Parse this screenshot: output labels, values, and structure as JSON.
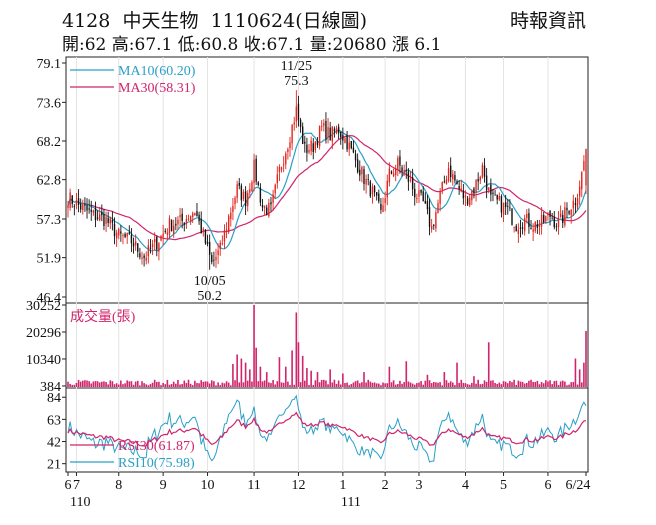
{
  "header": {
    "code": "4128",
    "name": "中天生物",
    "date": "1110624",
    "period": "(日線圖)",
    "source": "時報資訊",
    "stats": [
      {
        "label": "開:",
        "value": "62"
      },
      {
        "label": "高:",
        "value": "67.1"
      },
      {
        "label": "低:",
        "value": "60.8"
      },
      {
        "label": "收:",
        "value": "67.1"
      },
      {
        "label": "量:",
        "value": "20680"
      },
      {
        "label": "漲",
        "value": "6.1"
      }
    ]
  },
  "chart_data": [
    {
      "type": "candlestick",
      "panel": "price",
      "ylim": [
        46.4,
        79.1
      ],
      "yticks": [
        79.1,
        73.6,
        68.2,
        62.8,
        57.3,
        51.9,
        46.4
      ],
      "legend": [
        {
          "label": "MA10(60.20)",
          "color": "#2a9fc7"
        },
        {
          "label": "MA30(58.31)",
          "color": "#d0246c"
        }
      ],
      "annotations": [
        {
          "date": "11/25",
          "value": "75.3",
          "position": "above"
        },
        {
          "date": "10/05",
          "value": "50.2",
          "position": "below"
        }
      ],
      "anchors": [
        {
          "i": 0,
          "v": 60.3
        },
        {
          "i": 6,
          "v": 59.0
        },
        {
          "i": 12,
          "v": 57.8
        },
        {
          "i": 18,
          "v": 57.2
        },
        {
          "i": 24,
          "v": 55.0
        },
        {
          "i": 30,
          "v": 54.2
        },
        {
          "i": 36,
          "v": 52.0
        },
        {
          "i": 42,
          "v": 54.0
        },
        {
          "i": 48,
          "v": 56.5
        },
        {
          "i": 54,
          "v": 57.0
        },
        {
          "i": 60,
          "v": 58.5
        },
        {
          "i": 64,
          "v": 55.0
        },
        {
          "i": 68,
          "v": 51.0
        },
        {
          "i": 72,
          "v": 53.0
        },
        {
          "i": 76,
          "v": 57.5
        },
        {
          "i": 80,
          "v": 61.5
        },
        {
          "i": 84,
          "v": 60.0
        },
        {
          "i": 88,
          "v": 64.5
        },
        {
          "i": 92,
          "v": 59.0
        },
        {
          "i": 96,
          "v": 58.5
        },
        {
          "i": 100,
          "v": 64.0
        },
        {
          "i": 104,
          "v": 68.0
        },
        {
          "i": 108,
          "v": 72.5
        },
        {
          "i": 112,
          "v": 67.0
        },
        {
          "i": 116,
          "v": 67.5
        },
        {
          "i": 120,
          "v": 70.0
        },
        {
          "i": 124,
          "v": 69.0
        },
        {
          "i": 128,
          "v": 69.8
        },
        {
          "i": 132,
          "v": 68.0
        },
        {
          "i": 136,
          "v": 65.5
        },
        {
          "i": 140,
          "v": 63.0
        },
        {
          "i": 144,
          "v": 61.0
        },
        {
          "i": 148,
          "v": 58.0
        },
        {
          "i": 152,
          "v": 63.5
        },
        {
          "i": 156,
          "v": 65.0
        },
        {
          "i": 160,
          "v": 63.5
        },
        {
          "i": 164,
          "v": 61.0
        },
        {
          "i": 168,
          "v": 59.5
        },
        {
          "i": 172,
          "v": 56.0
        },
        {
          "i": 176,
          "v": 60.5
        },
        {
          "i": 180,
          "v": 64.5
        },
        {
          "i": 184,
          "v": 62.0
        },
        {
          "i": 188,
          "v": 60.0
        },
        {
          "i": 192,
          "v": 61.5
        },
        {
          "i": 196,
          "v": 64.5
        },
        {
          "i": 200,
          "v": 60.0
        },
        {
          "i": 204,
          "v": 59.5
        },
        {
          "i": 208,
          "v": 58.5
        },
        {
          "i": 212,
          "v": 56.5
        },
        {
          "i": 216,
          "v": 57.2
        },
        {
          "i": 220,
          "v": 56.5
        },
        {
          "i": 224,
          "v": 56.8
        },
        {
          "i": 228,
          "v": 57.8
        },
        {
          "i": 232,
          "v": 56.5
        },
        {
          "i": 236,
          "v": 58.5
        },
        {
          "i": 240,
          "v": 60.0
        },
        {
          "i": 243,
          "v": 63.5
        },
        {
          "i": 245,
          "v": 67.1
        }
      ],
      "spikes": [
        {
          "i": 67,
          "v": 50.2,
          "kind": "low"
        },
        {
          "i": 108,
          "v": 75.3,
          "kind": "high"
        }
      ]
    },
    {
      "type": "bar",
      "panel": "volume",
      "title": "成交量(張)",
      "color": "#d0246c",
      "ylim": [
        0,
        30252
      ],
      "yticks": [
        30252,
        20296,
        10340,
        384
      ],
      "base": 1500,
      "spikes": [
        {
          "i": 78,
          "v": 8500
        },
        {
          "i": 80,
          "v": 12000
        },
        {
          "i": 82,
          "v": 10500
        },
        {
          "i": 84,
          "v": 9000
        },
        {
          "i": 86,
          "v": 6500
        },
        {
          "i": 88,
          "v": 30252
        },
        {
          "i": 89,
          "v": 14500
        },
        {
          "i": 91,
          "v": 7500
        },
        {
          "i": 94,
          "v": 5500
        },
        {
          "i": 100,
          "v": 11000
        },
        {
          "i": 103,
          "v": 7500
        },
        {
          "i": 106,
          "v": 13500
        },
        {
          "i": 108,
          "v": 27500
        },
        {
          "i": 109,
          "v": 16500
        },
        {
          "i": 111,
          "v": 11500
        },
        {
          "i": 113,
          "v": 7000
        },
        {
          "i": 115,
          "v": 6000
        },
        {
          "i": 118,
          "v": 5500
        },
        {
          "i": 124,
          "v": 6500
        },
        {
          "i": 130,
          "v": 5000
        },
        {
          "i": 140,
          "v": 5500
        },
        {
          "i": 152,
          "v": 7500
        },
        {
          "i": 160,
          "v": 9500
        },
        {
          "i": 170,
          "v": 4500
        },
        {
          "i": 178,
          "v": 5500
        },
        {
          "i": 184,
          "v": 9000
        },
        {
          "i": 192,
          "v": 4000
        },
        {
          "i": 199,
          "v": 16500
        },
        {
          "i": 240,
          "v": 10500
        },
        {
          "i": 242,
          "v": 6500
        },
        {
          "i": 244,
          "v": 9000
        },
        {
          "i": 245,
          "v": 20680
        }
      ]
    },
    {
      "type": "line",
      "panel": "rsi",
      "ylim": [
        15,
        88
      ],
      "yticks": [
        84,
        63,
        42,
        21
      ],
      "series": [
        {
          "label": "RSI30(61.87)",
          "color": "#d0246c"
        },
        {
          "label": "RSI10(75.98)",
          "color": "#2a9fc7"
        }
      ]
    }
  ],
  "x_axis": {
    "ticks": [
      {
        "i": 0,
        "label": "6"
      },
      {
        "i": 4,
        "label": "7"
      },
      {
        "i": 24,
        "label": "8"
      },
      {
        "i": 45,
        "label": "9"
      },
      {
        "i": 66,
        "label": "10"
      },
      {
        "i": 88,
        "label": "11"
      },
      {
        "i": 109,
        "label": "12"
      },
      {
        "i": 130,
        "label": "1"
      },
      {
        "i": 150,
        "label": "2"
      },
      {
        "i": 166,
        "label": "3"
      },
      {
        "i": 188,
        "label": "4"
      },
      {
        "i": 206,
        "label": "5"
      },
      {
        "i": 227,
        "label": "6"
      },
      {
        "i": 245,
        "label": "6/24"
      }
    ],
    "year_labels": [
      {
        "i": 2,
        "label": "110"
      },
      {
        "i": 130,
        "label": "111"
      }
    ],
    "n_days": 246
  }
}
